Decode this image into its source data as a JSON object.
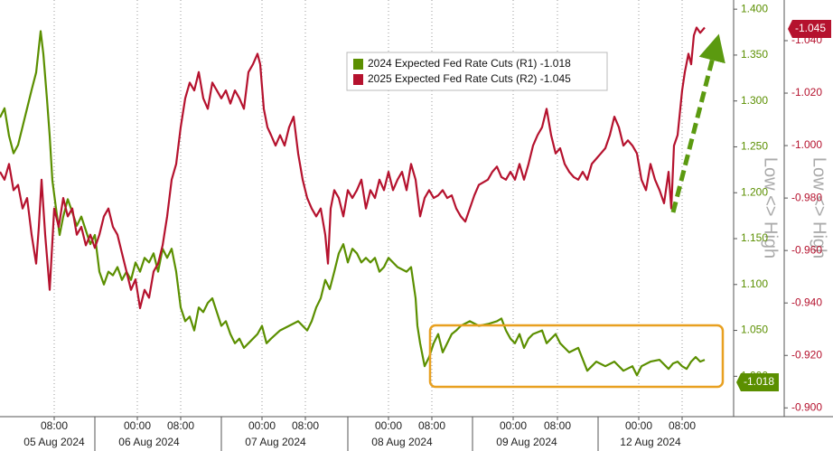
{
  "chart_data": {
    "type": "line",
    "y_label": "Low <> High",
    "y2_label": "Low <> High",
    "xlim": [
      0,
      812
    ],
    "xticks": [
      {
        "value": 60,
        "label": "08:00"
      },
      {
        "value": 152,
        "label": "00:00"
      },
      {
        "value": 200,
        "label": "08:00"
      },
      {
        "value": 290,
        "label": "00:00"
      },
      {
        "value": 338,
        "label": "08:00"
      },
      {
        "value": 430,
        "label": "00:00"
      },
      {
        "value": 478,
        "label": "08:00"
      },
      {
        "value": 568,
        "label": "00:00"
      },
      {
        "value": 617,
        "label": "08:00"
      },
      {
        "value": 707,
        "label": "00:00"
      },
      {
        "value": 755,
        "label": "08:00"
      }
    ],
    "x_day_labels": [
      {
        "value": 60,
        "label": "05 Aug 2024"
      },
      {
        "value": 165,
        "label": "06 Aug 2024"
      },
      {
        "value": 305,
        "label": "07 Aug 2024"
      },
      {
        "value": 445,
        "label": "08 Aug 2024"
      },
      {
        "value": 583,
        "label": "09 Aug 2024"
      },
      {
        "value": 720,
        "label": "12 Aug 2024"
      }
    ],
    "ylim": [
      0.957,
      1.41
    ],
    "yticks": [
      {
        "value": 1.0,
        "label": "1.000"
      },
      {
        "value": 1.05,
        "label": "1.050"
      },
      {
        "value": 1.1,
        "label": "1.100"
      },
      {
        "value": 1.15,
        "label": "1.150"
      },
      {
        "value": 1.2,
        "label": "1.200"
      },
      {
        "value": 1.25,
        "label": "1.250"
      },
      {
        "value": 1.3,
        "label": "1.300"
      },
      {
        "value": 1.35,
        "label": "1.350"
      },
      {
        "value": 1.4,
        "label": "1.400"
      }
    ],
    "y2lim": [
      -0.897,
      -1.0555
    ],
    "y2ticks": [
      {
        "value": -0.9,
        "label": "-0.900"
      },
      {
        "value": -0.92,
        "label": "-0.920"
      },
      {
        "value": -0.94,
        "label": "-0.940"
      },
      {
        "value": -0.96,
        "label": "-0.960"
      },
      {
        "value": -0.98,
        "label": "-0.980"
      },
      {
        "value": -1.0,
        "label": "-1.000"
      },
      {
        "value": -1.02,
        "label": "-1.020"
      },
      {
        "value": -1.04,
        "label": "-1.040"
      }
    ],
    "grid": "x",
    "series": [
      {
        "name": "2024 Expected Fed Rate Cuts (R1) -1.018",
        "color": "#5b8f00",
        "last_label": "-1.018",
        "x": [
          0,
          5,
          10,
          15,
          20,
          25,
          30,
          35,
          40,
          45,
          48,
          52,
          55,
          58,
          62,
          66,
          70,
          75,
          80,
          85,
          90,
          95,
          100,
          105,
          110,
          115,
          120,
          125,
          130,
          135,
          140,
          145,
          150,
          155,
          160,
          165,
          170,
          175,
          180,
          185,
          190,
          195,
          200,
          205,
          210,
          215,
          220,
          225,
          230,
          235,
          240,
          245,
          250,
          255,
          260,
          265,
          270,
          275,
          285,
          290,
          295,
          300,
          310,
          320,
          330,
          340,
          345,
          350,
          355,
          360,
          365,
          370,
          375,
          380,
          385,
          390,
          395,
          400,
          405,
          410,
          415,
          420,
          425,
          430,
          440,
          450,
          455,
          460,
          462,
          465,
          470,
          475,
          480,
          485,
          490,
          495,
          500,
          505,
          510,
          520,
          530,
          540,
          550,
          555,
          560,
          565,
          570,
          575,
          580,
          585,
          590,
          600,
          605,
          610,
          615,
          620,
          625,
          630,
          640,
          650,
          655,
          660,
          670,
          680,
          690,
          700,
          705,
          710,
          720,
          730,
          740,
          745,
          750,
          755,
          760,
          765,
          770,
          775,
          780
        ],
        "values": [
          1.282,
          1.292,
          1.262,
          1.243,
          1.252,
          1.272,
          1.292,
          1.312,
          1.331,
          1.376,
          1.351,
          1.302,
          1.262,
          1.213,
          1.183,
          1.154,
          1.174,
          1.193,
          1.179,
          1.164,
          1.174,
          1.159,
          1.144,
          1.154,
          1.114,
          1.1,
          1.114,
          1.11,
          1.119,
          1.105,
          1.114,
          1.105,
          1.124,
          1.114,
          1.129,
          1.124,
          1.134,
          1.114,
          1.139,
          1.129,
          1.139,
          1.114,
          1.075,
          1.06,
          1.065,
          1.05,
          1.075,
          1.07,
          1.08,
          1.085,
          1.07,
          1.055,
          1.06,
          1.046,
          1.036,
          1.041,
          1.031,
          1.036,
          1.046,
          1.055,
          1.036,
          1.041,
          1.05,
          1.055,
          1.06,
          1.05,
          1.06,
          1.075,
          1.085,
          1.105,
          1.095,
          1.114,
          1.134,
          1.144,
          1.124,
          1.139,
          1.134,
          1.124,
          1.129,
          1.124,
          1.129,
          1.114,
          1.119,
          1.129,
          1.119,
          1.114,
          1.119,
          1.085,
          1.055,
          1.036,
          1.011,
          1.021,
          1.036,
          1.046,
          1.026,
          1.036,
          1.046,
          1.05,
          1.055,
          1.06,
          1.055,
          1.057,
          1.06,
          1.063,
          1.05,
          1.041,
          1.036,
          1.046,
          1.031,
          1.041,
          1.046,
          1.05,
          1.036,
          1.041,
          1.046,
          1.036,
          1.031,
          1.026,
          1.031,
          1.006,
          1.011,
          1.016,
          1.011,
          1.016,
          1.006,
          1.011,
          1.001,
          1.011,
          1.016,
          1.018,
          1.008,
          1.014,
          1.016,
          1.011,
          1.008,
          1.016,
          1.021,
          1.016,
          1.018
        ]
      },
      {
        "name": "2025 Expected Fed Rate Cuts (R2) -1.045",
        "color": "#b5122e",
        "axis": "y2",
        "last_label": "-1.045",
        "x": [
          0,
          5,
          10,
          15,
          20,
          25,
          30,
          35,
          40,
          43,
          46,
          50,
          55,
          60,
          65,
          70,
          75,
          80,
          85,
          90,
          95,
          100,
          105,
          110,
          115,
          120,
          125,
          130,
          135,
          140,
          145,
          150,
          155,
          160,
          165,
          170,
          175,
          180,
          185,
          190,
          195,
          200,
          205,
          210,
          215,
          220,
          225,
          230,
          235,
          240,
          245,
          250,
          255,
          260,
          265,
          270,
          275,
          280,
          285,
          288,
          292,
          296,
          300,
          305,
          310,
          315,
          320,
          325,
          330,
          335,
          340,
          345,
          350,
          355,
          360,
          363,
          366,
          370,
          375,
          380,
          385,
          390,
          395,
          400,
          405,
          410,
          415,
          420,
          425,
          430,
          435,
          440,
          445,
          450,
          455,
          460,
          465,
          470,
          475,
          480,
          485,
          490,
          495,
          500,
          505,
          510,
          515,
          520,
          525,
          530,
          540,
          545,
          550,
          555,
          560,
          565,
          570,
          575,
          580,
          585,
          590,
          595,
          600,
          605,
          610,
          615,
          620,
          625,
          630,
          635,
          640,
          645,
          650,
          655,
          660,
          665,
          670,
          675,
          680,
          685,
          690,
          695,
          700,
          705,
          710,
          715,
          720,
          725,
          730,
          735,
          740,
          743,
          746,
          750,
          755,
          758,
          762,
          765,
          768,
          771,
          775,
          780
        ],
        "values": [
          -0.99,
          -0.987,
          -0.993,
          -0.983,
          -0.985,
          -0.976,
          -0.98,
          -0.966,
          -0.955,
          -0.969,
          -0.987,
          -0.966,
          -0.945,
          -0.976,
          -0.969,
          -0.98,
          -0.973,
          -0.976,
          -0.966,
          -0.969,
          -0.962,
          -0.966,
          -0.961,
          -0.966,
          -0.973,
          -0.976,
          -0.969,
          -0.966,
          -0.959,
          -0.952,
          -0.945,
          -0.949,
          -0.938,
          -0.945,
          -0.942,
          -0.952,
          -0.955,
          -0.962,
          -0.973,
          -0.987,
          -0.993,
          -1.007,
          -1.018,
          -1.024,
          -1.021,
          -1.028,
          -1.018,
          -1.014,
          -1.024,
          -1.021,
          -1.018,
          -1.021,
          -1.016,
          -1.021,
          -1.018,
          -1.014,
          -1.028,
          -1.031,
          -1.035,
          -1.031,
          -1.014,
          -1.007,
          -1.004,
          -1.0,
          -1.004,
          -1.0,
          -1.007,
          -1.011,
          -0.997,
          -0.987,
          -0.98,
          -0.976,
          -0.973,
          -0.976,
          -0.966,
          -0.955,
          -0.976,
          -0.983,
          -0.98,
          -0.973,
          -0.983,
          -0.98,
          -0.983,
          -0.987,
          -0.976,
          -0.983,
          -0.98,
          -0.987,
          -0.983,
          -0.99,
          -0.983,
          -0.987,
          -0.99,
          -0.983,
          -0.993,
          -0.987,
          -0.973,
          -0.98,
          -0.983,
          -0.98,
          -0.981,
          -0.983,
          -0.98,
          -0.981,
          -0.976,
          -0.973,
          -0.971,
          -0.976,
          -0.981,
          -0.985,
          -0.987,
          -0.99,
          -0.992,
          -0.988,
          -0.987,
          -0.99,
          -0.987,
          -0.993,
          -0.987,
          -0.993,
          -1.0,
          -1.004,
          -1.007,
          -1.014,
          -1.004,
          -0.997,
          -0.999,
          -0.993,
          -0.99,
          -0.988,
          -0.987,
          -0.99,
          -0.987,
          -0.993,
          -0.995,
          -0.997,
          -0.999,
          -1.004,
          -1.011,
          -1.007,
          -1.0,
          -1.002,
          -1.0,
          -0.997,
          -0.987,
          -0.983,
          -0.993,
          -0.987,
          -0.983,
          -0.978,
          -0.99,
          -0.976,
          -1.0,
          -1.004,
          -1.021,
          -1.028,
          -1.035,
          -1.031,
          -1.042,
          -1.045,
          -1.043,
          -1.045
        ]
      }
    ]
  }
}
